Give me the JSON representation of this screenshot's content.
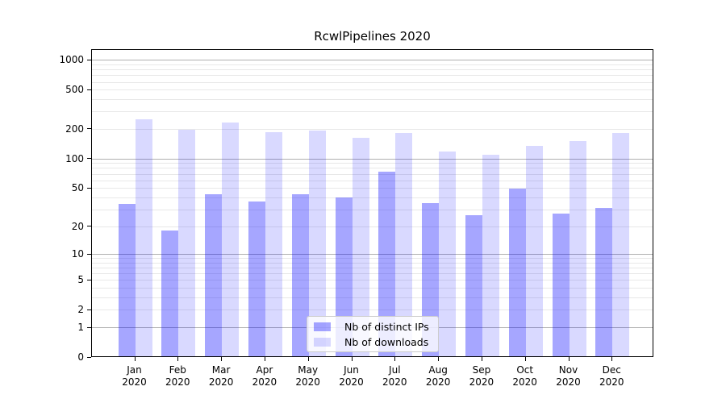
{
  "figure": {
    "title": "RcwlPipelines 2020"
  },
  "chart_data": {
    "type": "bar",
    "title": "RcwlPipelines 2020",
    "categories": [
      "Jan",
      "Feb",
      "Mar",
      "Apr",
      "May",
      "Jun",
      "Jul",
      "Aug",
      "Sep",
      "Oct",
      "Nov",
      "Dec"
    ],
    "year_label": "2020",
    "series": [
      {
        "name": "Nb of distinct IPs",
        "color": "rgba(0,0,255,0.35)",
        "values": [
          34,
          18,
          43,
          36,
          43,
          40,
          73,
          35,
          26,
          49,
          27,
          31
        ]
      },
      {
        "name": "Nb of downloads",
        "color": "rgba(0,0,255,0.15)",
        "values": [
          249,
          196,
          231,
          184,
          191,
          162,
          181,
          117,
          109,
          134,
          151,
          183
        ]
      }
    ],
    "yscale": "log1p",
    "ylim": [
      0,
      1000
    ],
    "yticks": [
      1000,
      500,
      200,
      100,
      50,
      20,
      10,
      5,
      2,
      1,
      0
    ],
    "major_gridlines": [
      1,
      10,
      100,
      1000
    ],
    "minor_gridlines": [
      2,
      3,
      4,
      5,
      6,
      7,
      8,
      9,
      20,
      30,
      40,
      50,
      60,
      70,
      80,
      90,
      200,
      300,
      400,
      500,
      600,
      700,
      800,
      900
    ],
    "grid": true,
    "legend_position": "lower-center",
    "colors": {
      "major_grid": "#b0b0b0",
      "minor_grid": "#e8e8e8",
      "spine": "#000000",
      "text": "#000000",
      "background": "#ffffff"
    }
  }
}
